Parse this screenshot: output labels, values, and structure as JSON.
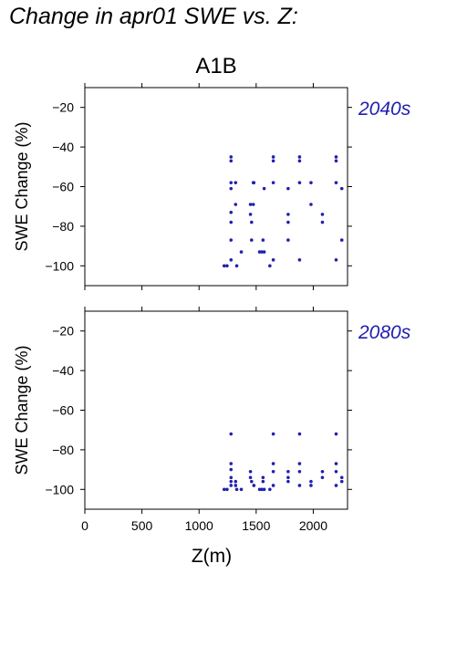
{
  "figure_title": "Change in apr01 SWE vs. Z:",
  "scenario": "A1B",
  "colors": {
    "points": "#2020b0",
    "period_label": "#2020b0",
    "axes": "#000000"
  },
  "chart_data": [
    {
      "type": "scatter",
      "period_label": "2040s",
      "xlabel": "Z(m)",
      "ylabel": "SWE Change (%)",
      "xlim": [
        0,
        2300
      ],
      "ylim": [
        -110,
        -10
      ],
      "yticks": [
        -20,
        -40,
        -60,
        -80,
        -100
      ],
      "xticks": [
        0,
        500,
        1000,
        1500,
        2000
      ],
      "show_xtick_labels": false,
      "grid": false,
      "points": [
        [
          1220,
          -100
        ],
        [
          1245,
          -100
        ],
        [
          1280,
          -45
        ],
        [
          1280,
          -47
        ],
        [
          1280,
          -58
        ],
        [
          1280,
          -61
        ],
        [
          1280,
          -73
        ],
        [
          1280,
          -78
        ],
        [
          1280,
          -87
        ],
        [
          1280,
          -97
        ],
        [
          1320,
          -58
        ],
        [
          1320,
          -69
        ],
        [
          1330,
          -100
        ],
        [
          1370,
          -93
        ],
        [
          1450,
          -69
        ],
        [
          1450,
          -74
        ],
        [
          1460,
          -78
        ],
        [
          1460,
          -87
        ],
        [
          1475,
          -58
        ],
        [
          1475,
          -69
        ],
        [
          1480,
          -58
        ],
        [
          1530,
          -93
        ],
        [
          1550,
          -93
        ],
        [
          1560,
          -87
        ],
        [
          1570,
          -93
        ],
        [
          1570,
          -61
        ],
        [
          1620,
          -100
        ],
        [
          1650,
          -45
        ],
        [
          1650,
          -47
        ],
        [
          1650,
          -58
        ],
        [
          1650,
          -97
        ],
        [
          1780,
          -61
        ],
        [
          1780,
          -74
        ],
        [
          1780,
          -78
        ],
        [
          1780,
          -87
        ],
        [
          1880,
          -45
        ],
        [
          1880,
          -47
        ],
        [
          1880,
          -58
        ],
        [
          1880,
          -97
        ],
        [
          1980,
          -58
        ],
        [
          1980,
          -69
        ],
        [
          2080,
          -74
        ],
        [
          2080,
          -78
        ],
        [
          2200,
          -45
        ],
        [
          2200,
          -47
        ],
        [
          2200,
          -58
        ],
        [
          2200,
          -97
        ],
        [
          2250,
          -61
        ],
        [
          2250,
          -87
        ]
      ]
    },
    {
      "type": "scatter",
      "period_label": "2080s",
      "xlabel": "Z(m)",
      "ylabel": "SWE Change (%)",
      "xlim": [
        0,
        2300
      ],
      "ylim": [
        -110,
        -10
      ],
      "yticks": [
        -20,
        -40,
        -60,
        -80,
        -100
      ],
      "xticks": [
        0,
        500,
        1000,
        1500,
        2000
      ],
      "xtick_labels": [
        "0",
        "500",
        "1000",
        "1500",
        "2000"
      ],
      "show_xtick_labels": true,
      "grid": false,
      "points": [
        [
          1220,
          -100
        ],
        [
          1245,
          -100
        ],
        [
          1280,
          -72
        ],
        [
          1280,
          -87
        ],
        [
          1280,
          -90
        ],
        [
          1280,
          -94
        ],
        [
          1280,
          -96
        ],
        [
          1280,
          -98
        ],
        [
          1320,
          -96
        ],
        [
          1320,
          -98
        ],
        [
          1330,
          -100
        ],
        [
          1370,
          -100
        ],
        [
          1450,
          -91
        ],
        [
          1450,
          -94
        ],
        [
          1460,
          -96
        ],
        [
          1480,
          -98
        ],
        [
          1530,
          -100
        ],
        [
          1550,
          -100
        ],
        [
          1560,
          -94
        ],
        [
          1560,
          -96
        ],
        [
          1570,
          -100
        ],
        [
          1620,
          -100
        ],
        [
          1650,
          -72
        ],
        [
          1650,
          -87
        ],
        [
          1650,
          -91
        ],
        [
          1650,
          -98
        ],
        [
          1780,
          -91
        ],
        [
          1780,
          -94
        ],
        [
          1780,
          -96
        ],
        [
          1880,
          -72
        ],
        [
          1880,
          -87
        ],
        [
          1880,
          -91
        ],
        [
          1880,
          -98
        ],
        [
          1980,
          -96
        ],
        [
          1980,
          -98
        ],
        [
          2080,
          -91
        ],
        [
          2080,
          -94
        ],
        [
          2200,
          -72
        ],
        [
          2200,
          -87
        ],
        [
          2200,
          -91
        ],
        [
          2200,
          -98
        ],
        [
          2250,
          -94
        ],
        [
          2250,
          -96
        ]
      ]
    }
  ]
}
